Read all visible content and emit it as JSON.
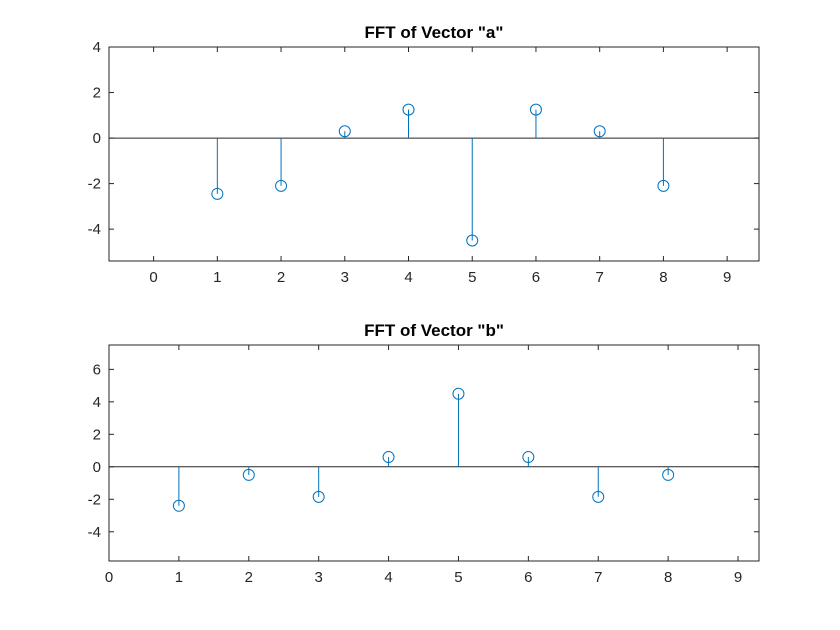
{
  "chart_data": [
    {
      "type": "stem",
      "title": "FFT of Vector \"a\"",
      "xlabel": "",
      "ylabel": "",
      "xlim": [
        -0.7,
        9.5
      ],
      "ylim": [
        -5.4,
        4.0
      ],
      "xticks": [
        0,
        1,
        2,
        3,
        4,
        5,
        6,
        7,
        8,
        9
      ],
      "yticks": [
        -4,
        -2,
        0,
        2,
        4
      ],
      "x": [
        1,
        2,
        3,
        4,
        5,
        6,
        7,
        8
      ],
      "values": [
        -2.45,
        -2.1,
        0.3,
        1.25,
        -4.5,
        1.25,
        0.3,
        -2.1
      ],
      "color": "#0072bd",
      "grid": false,
      "legend": "none"
    },
    {
      "type": "stem",
      "title": "FFT of Vector \"b\"",
      "xlabel": "",
      "ylabel": "",
      "xlim": [
        0,
        9.3
      ],
      "ylim": [
        -5.8,
        7.5
      ],
      "xticks": [
        0,
        1,
        2,
        3,
        4,
        5,
        6,
        7,
        8,
        9
      ],
      "yticks": [
        -4,
        -2,
        0,
        2,
        4,
        6
      ],
      "x": [
        1,
        2,
        3,
        4,
        5,
        6,
        7,
        8
      ],
      "values": [
        -2.4,
        -0.5,
        -1.85,
        0.6,
        4.5,
        0.6,
        -1.85,
        -0.5
      ],
      "color": "#0072bd",
      "grid": false,
      "legend": "none"
    }
  ]
}
